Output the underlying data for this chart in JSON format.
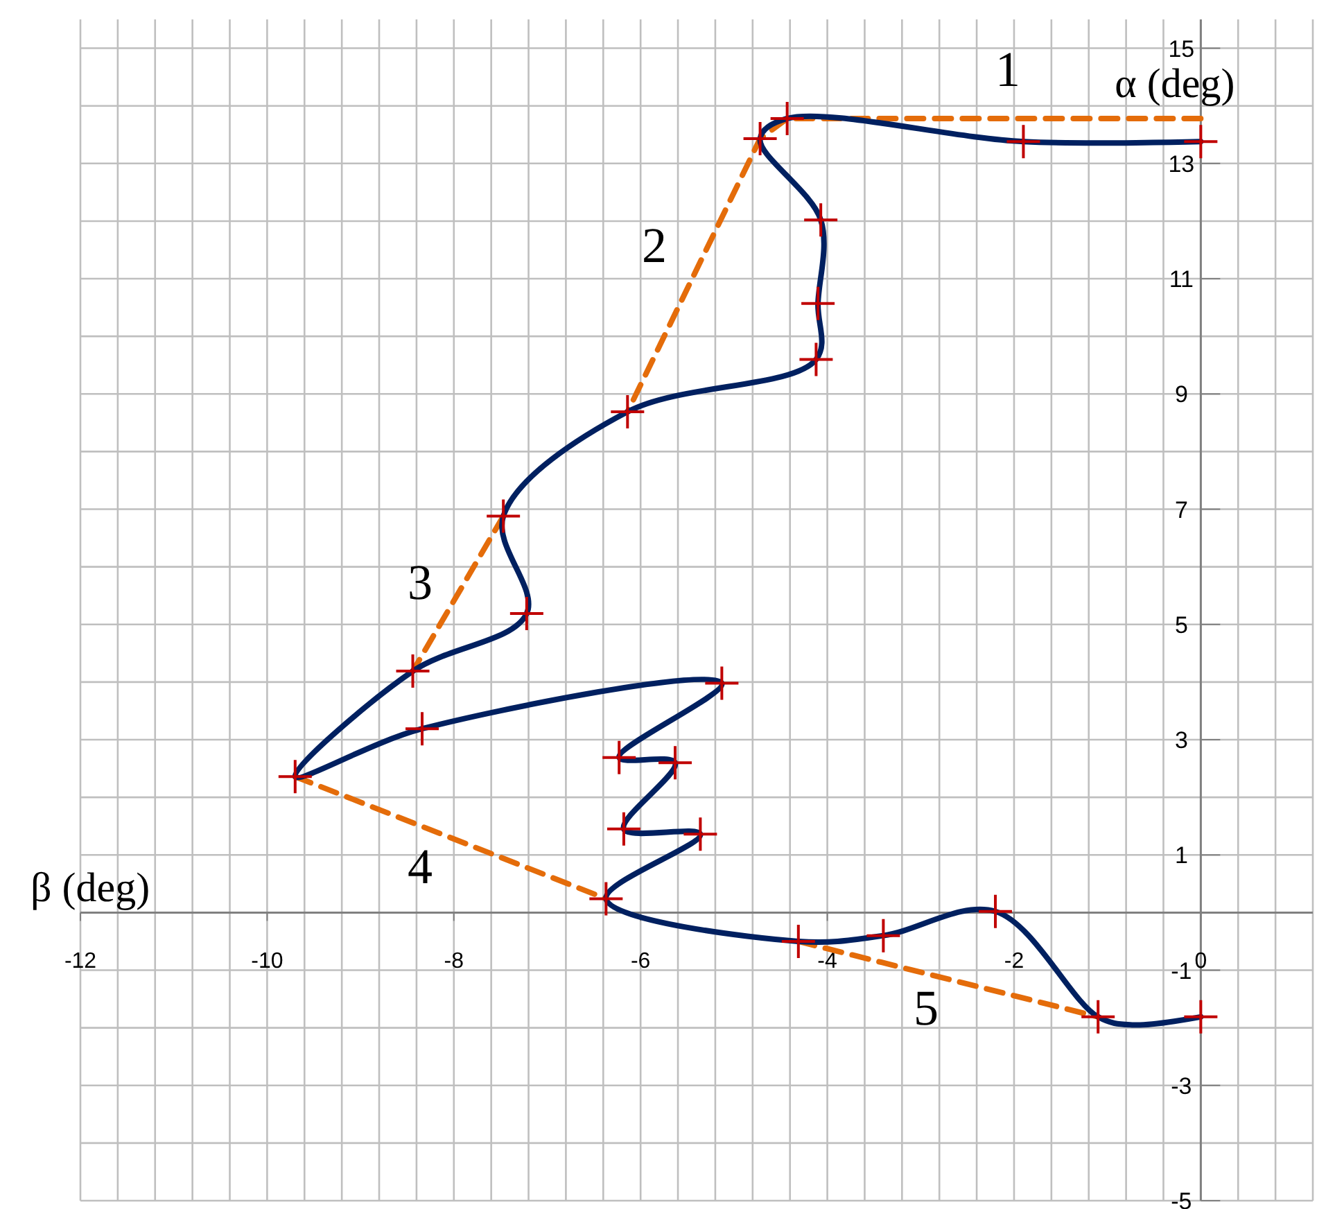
{
  "chart_data": {
    "type": "line",
    "xlabel": "β (deg)",
    "ylabel": "α (deg)",
    "xlim": [
      -12,
      1.2
    ],
    "ylim": [
      -5,
      15.5
    ],
    "xticks": [
      -12,
      -10,
      -8,
      -6,
      -4,
      -2,
      0
    ],
    "yticks": [
      -5,
      -3,
      -1,
      1,
      3,
      5,
      7,
      9,
      11,
      13,
      15
    ],
    "grid": true,
    "series": [
      {
        "color": "#e46c0a",
        "line_style": "dashed",
        "marker": "none",
        "x": [
          0,
          -4.43,
          -4.72,
          -6.14,
          -6.8,
          -7.47,
          -8.44,
          -9,
          -9.7,
          -6.37,
          -5.3,
          -4.31,
          -1.1
        ],
        "values": [
          13.78,
          13.78,
          13.43,
          8.69,
          null,
          6.88,
          4.19,
          null,
          2.36,
          0.24,
          null,
          -0.5,
          -1.81
        ]
      },
      {
        "color": "#002060",
        "line_style": "solid",
        "marker": "none",
        "x": [
          0,
          -1.9,
          -4.43,
          -4.72,
          -4.07,
          -4.1,
          -4.12,
          -6.14,
          -7.47,
          -7.22,
          -8.44,
          -9.7,
          -8.34,
          -5.13,
          -6.23,
          -5.63,
          -6.18,
          -5.36,
          -6.37,
          -4.31,
          -3.4,
          -2.2,
          -1.1,
          -0.72,
          0
        ],
        "values": [
          13.38,
          13.38,
          13.78,
          13.43,
          12.02,
          10.57,
          9.6,
          8.69,
          6.88,
          5.19,
          4.19,
          2.36,
          3.19,
          3.98,
          2.69,
          2.6,
          1.45,
          1.36,
          0.24,
          -0.5,
          -0.4,
          0.02,
          -1.81,
          -1.95,
          -1.81
        ]
      },
      {
        "type": "scatter",
        "color": "#c00000",
        "marker": "cross",
        "x": [
          0,
          -1.9,
          -4.43,
          -4.72,
          -4.07,
          -4.1,
          -4.12,
          -6.14,
          -7.47,
          -7.22,
          -8.44,
          -9.7,
          -8.34,
          -5.13,
          -6.23,
          -5.63,
          -6.18,
          -5.36,
          -6.37,
          -4.31,
          -3.4,
          -2.2,
          -1.1,
          0
        ],
        "values": [
          13.38,
          13.38,
          13.78,
          13.43,
          12.02,
          10.57,
          9.6,
          8.69,
          6.88,
          5.19,
          4.19,
          2.36,
          3.19,
          3.98,
          2.69,
          2.6,
          1.45,
          1.36,
          0.24,
          -0.5,
          -0.4,
          0.02,
          -1.81,
          -1.81
        ]
      }
    ],
    "annotations": [
      "1",
      "2",
      "3",
      "4",
      "5"
    ]
  }
}
